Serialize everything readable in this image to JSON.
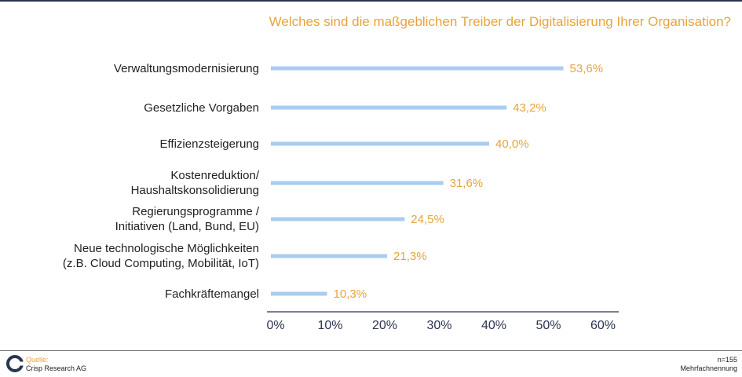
{
  "title": "Welches sind die maßgeblichen Treiber der Digitalisierung Ihrer Organisation?",
  "colors": {
    "bar": "#aaccf0",
    "value": "#e8a33a",
    "axis": "#2b3350",
    "title": "#e8a33a"
  },
  "chart_data": {
    "type": "bar",
    "orientation": "horizontal",
    "title": "Welches sind die maßgeblichen Treiber der Digitalisierung Ihrer Organisation?",
    "categories": [
      [
        "Verwaltungsmodernisierung"
      ],
      [
        "Gesetzliche Vorgaben"
      ],
      [
        "Effizienzsteigerung"
      ],
      [
        "Kostenreduktion/",
        "Haushaltskonsolidierung"
      ],
      [
        "Regierungsprogramme /",
        "Initiativen (Land, Bund, EU)"
      ],
      [
        "Neue technologische Möglichkeiten",
        "(z.B. Cloud Computing, Mobilität, IoT)"
      ],
      [
        "Fachkräftemangel"
      ]
    ],
    "values": [
      53.6,
      43.2,
      40.0,
      31.6,
      24.5,
      21.3,
      10.3
    ],
    "value_labels": [
      "53,6%",
      "43,2%",
      "40,0%",
      "31,6%",
      "24,5%",
      "21,3%",
      "10,3%"
    ],
    "xlim": [
      0,
      60
    ],
    "xticks": [
      0,
      10,
      20,
      30,
      40,
      50,
      60
    ],
    "xtick_labels": [
      "0%",
      "10%",
      "20%",
      "30%",
      "40%",
      "50%",
      "60%"
    ],
    "grid": false
  },
  "footer": {
    "source_label": "Quelle:",
    "source_name": "Crisp Research AG",
    "n": "n=155",
    "note": "Mehrfachnennung"
  }
}
